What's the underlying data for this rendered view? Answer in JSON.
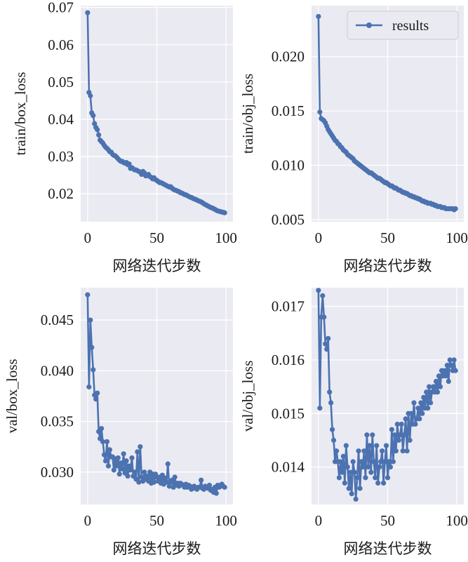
{
  "chart_data": [
    {
      "type": "line",
      "ylabel": "train/box_loss",
      "xlabel": "网络迭代步数",
      "xlim": [
        -5,
        105
      ],
      "ylim": [
        0.0125,
        0.0705
      ],
      "xticks": [
        0,
        50,
        100
      ],
      "yticks": [
        0.02,
        0.03,
        0.04,
        0.05,
        0.06,
        0.07
      ],
      "ytick_labels": [
        "0.02",
        "0.03",
        "0.04",
        "0.05",
        "0.06",
        "0.07"
      ],
      "legend": null,
      "series": [
        {
          "values": [
            0.0686,
            0.0472,
            0.0463,
            0.0417,
            0.041,
            0.0388,
            0.0378,
            0.0372,
            0.0358,
            0.0344,
            0.034,
            0.0336,
            0.033,
            0.0325,
            0.0322,
            0.0318,
            0.0313,
            0.0312,
            0.0306,
            0.0303,
            0.0302,
            0.0298,
            0.0294,
            0.029,
            0.0287,
            0.0287,
            0.0284,
            0.0282,
            0.0284,
            0.0278,
            0.028,
            0.0268,
            0.027,
            0.0267,
            0.0264,
            0.0264,
            0.0262,
            0.026,
            0.0258,
            0.0252,
            0.026,
            0.0256,
            0.0248,
            0.0249,
            0.0252,
            0.0246,
            0.0244,
            0.024,
            0.0243,
            0.0238,
            0.0236,
            0.0233,
            0.023,
            0.023,
            0.0228,
            0.0226,
            0.0224,
            0.0222,
            0.022,
            0.0218,
            0.0219,
            0.0215,
            0.0212,
            0.021,
            0.0209,
            0.0207,
            0.0206,
            0.0203,
            0.0202,
            0.02,
            0.0198,
            0.0197,
            0.0195,
            0.0193,
            0.0191,
            0.019,
            0.0188,
            0.0186,
            0.0185,
            0.0183,
            0.0181,
            0.018,
            0.0178,
            0.0176,
            0.0173,
            0.0171,
            0.0169,
            0.0167,
            0.0165,
            0.0163,
            0.0162,
            0.016,
            0.0158,
            0.0156,
            0.0154,
            0.0153,
            0.0152,
            0.0151,
            0.015,
            0.0149
          ]
        }
      ]
    },
    {
      "type": "line",
      "ylabel": "train/obj_loss",
      "xlabel": "网络迭代步数",
      "xlim": [
        -5,
        105
      ],
      "ylim": [
        0.0048,
        0.0247
      ],
      "xticks": [
        0,
        50,
        100
      ],
      "yticks": [
        0.005,
        0.01,
        0.015,
        0.02
      ],
      "ytick_labels": [
        "0.005",
        "0.010",
        "0.015",
        "0.020"
      ],
      "legend": {
        "label": "results",
        "position": "upper right"
      },
      "series": [
        {
          "name": "results",
          "values": [
            0.0237,
            0.0149,
            0.0143,
            0.0142,
            0.0141,
            0.0139,
            0.0136,
            0.0133,
            0.0131,
            0.0129,
            0.0127,
            0.0125,
            0.0123,
            0.0122,
            0.012,
            0.0119,
            0.0117,
            0.0116,
            0.0114,
            0.0113,
            0.0112,
            0.011,
            0.0109,
            0.0108,
            0.0107,
            0.0106,
            0.0104,
            0.0103,
            0.0102,
            0.0101,
            0.01,
            0.0099,
            0.0098,
            0.0097,
            0.0096,
            0.0095,
            0.0094,
            0.0093,
            0.0093,
            0.0092,
            0.0091,
            0.009,
            0.0089,
            0.0088,
            0.0088,
            0.0087,
            0.0086,
            0.0085,
            0.0084,
            0.0084,
            0.0083,
            0.0082,
            0.0081,
            0.0081,
            0.008,
            0.0079,
            0.0079,
            0.0078,
            0.0077,
            0.0077,
            0.0076,
            0.0075,
            0.0075,
            0.0074,
            0.0074,
            0.0073,
            0.0072,
            0.0072,
            0.0071,
            0.0071,
            0.007,
            0.007,
            0.0069,
            0.0069,
            0.0068,
            0.0067,
            0.0067,
            0.0066,
            0.0066,
            0.0065,
            0.0065,
            0.0065,
            0.0064,
            0.0064,
            0.0063,
            0.0063,
            0.0062,
            0.0062,
            0.0062,
            0.0061,
            0.0061,
            0.0061,
            0.006,
            0.006,
            0.006,
            0.006,
            0.006,
            0.006,
            0.0059,
            0.006
          ]
        }
      ]
    },
    {
      "type": "line",
      "ylabel": "val/box_loss",
      "xlabel": "网络迭代步数",
      "xlim": [
        -5,
        105
      ],
      "ylim": [
        0.0268,
        0.0482
      ],
      "xticks": [
        0,
        50,
        100
      ],
      "yticks": [
        0.03,
        0.035,
        0.04,
        0.045
      ],
      "ytick_labels": [
        "0.030",
        "0.035",
        "0.040",
        "0.045"
      ],
      "legend": null,
      "series": [
        {
          "values": [
            0.0475,
            0.0384,
            0.045,
            0.0423,
            0.0401,
            0.0376,
            0.0372,
            0.0378,
            0.034,
            0.0333,
            0.0343,
            0.033,
            0.0317,
            0.0311,
            0.033,
            0.0306,
            0.0322,
            0.0315,
            0.0315,
            0.0302,
            0.0313,
            0.0306,
            0.0314,
            0.0298,
            0.0309,
            0.0303,
            0.0318,
            0.0299,
            0.0311,
            0.0296,
            0.0306,
            0.0302,
            0.0314,
            0.0296,
            0.03,
            0.0293,
            0.032,
            0.029,
            0.0325,
            0.0295,
            0.0291,
            0.03,
            0.0293,
            0.0296,
            0.0291,
            0.03,
            0.0289,
            0.0298,
            0.029,
            0.0298,
            0.0295,
            0.0291,
            0.0295,
            0.0289,
            0.0297,
            0.0288,
            0.0294,
            0.029,
            0.0308,
            0.0286,
            0.029,
            0.0292,
            0.0285,
            0.0295,
            0.0287,
            0.0289,
            0.0286,
            0.0289,
            0.0288,
            0.0287,
            0.0285,
            0.0288,
            0.0285,
            0.0287,
            0.0286,
            0.0283,
            0.0284,
            0.0286,
            0.0284,
            0.0283,
            0.0285,
            0.0285,
            0.0292,
            0.0284,
            0.0283,
            0.0286,
            0.0285,
            0.0284,
            0.0287,
            0.0282,
            0.0283,
            0.028,
            0.0285,
            0.0279,
            0.0287,
            0.0285,
            0.0286,
            0.0288,
            0.0286,
            0.0285
          ]
        }
      ]
    },
    {
      "type": "line",
      "ylabel": "val/obj_loss",
      "xlabel": "网络迭代步数",
      "xlim": [
        -5,
        105
      ],
      "ylim": [
        0.0133,
        0.01735
      ],
      "xticks": [
        0,
        50,
        100
      ],
      "yticks": [
        0.014,
        0.015,
        0.016,
        0.017
      ],
      "ytick_labels": [
        "0.014",
        "0.015",
        "0.016",
        "0.017"
      ],
      "legend": null,
      "series": [
        {
          "values": [
            0.0173,
            0.0151,
            0.0168,
            0.0172,
            0.0168,
            0.0163,
            0.0162,
            0.0164,
            0.0154,
            0.0152,
            0.0147,
            0.0145,
            0.0141,
            0.0143,
            0.0141,
            0.0138,
            0.0141,
            0.0139,
            0.0142,
            0.0137,
            0.0144,
            0.014,
            0.0136,
            0.0139,
            0.0135,
            0.0141,
            0.0139,
            0.0134,
            0.0138,
            0.0143,
            0.0136,
            0.0141,
            0.014,
            0.0143,
            0.0138,
            0.0146,
            0.014,
            0.0144,
            0.0139,
            0.0146,
            0.0141,
            0.0138,
            0.0144,
            0.0137,
            0.014,
            0.0141,
            0.0143,
            0.0137,
            0.0141,
            0.0144,
            0.0138,
            0.0141,
            0.014,
            0.0147,
            0.0141,
            0.0146,
            0.0143,
            0.0148,
            0.0145,
            0.0146,
            0.0148,
            0.0143,
            0.0146,
            0.0149,
            0.0143,
            0.015,
            0.0145,
            0.015,
            0.0148,
            0.0152,
            0.0148,
            0.0149,
            0.0151,
            0.0149,
            0.0152,
            0.015,
            0.0153,
            0.0151,
            0.0154,
            0.0151,
            0.0155,
            0.0152,
            0.0154,
            0.0155,
            0.0154,
            0.0156,
            0.0154,
            0.0157,
            0.0155,
            0.0158,
            0.0157,
            0.0158,
            0.0157,
            0.0159,
            0.0156,
            0.016,
            0.0159,
            0.0158,
            0.016,
            0.0158
          ]
        }
      ]
    }
  ]
}
